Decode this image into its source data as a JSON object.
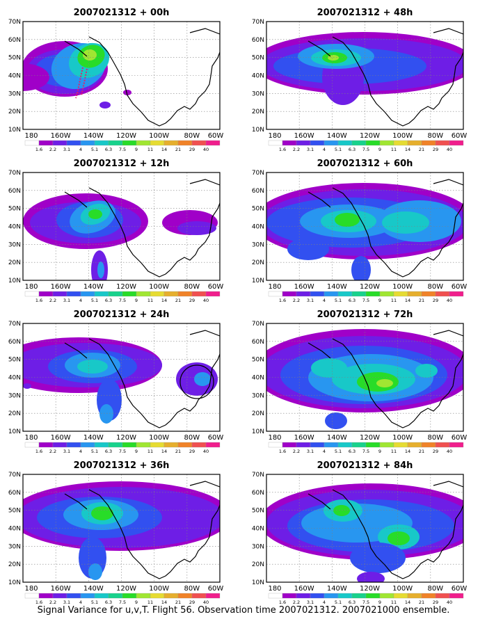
{
  "caption": "Signal Variance for u,v,T. Flight 56. Observation time 2007021312. 2007021000 ensemble.",
  "map": {
    "lat_labels": [
      "70N",
      "60N",
      "50N",
      "40N",
      "30N",
      "20N",
      "10N"
    ],
    "lon_labels": [
      "180",
      "160W",
      "140W",
      "120W",
      "100W",
      "80W",
      "60W"
    ]
  },
  "colorbar": {
    "levels": [
      "1.6",
      "2.2",
      "3.1",
      "4",
      "5.1",
      "6.3",
      "7.5",
      "9",
      "11",
      "14",
      "21",
      "29",
      "40"
    ],
    "colors": [
      "#ffffff",
      "#a000c8",
      "#6e1ee6",
      "#3250f0",
      "#2896f0",
      "#18c8c8",
      "#18d28c",
      "#28dc28",
      "#a0e632",
      "#e6dc32",
      "#e6af2d",
      "#f08228",
      "#f05050",
      "#f01e8c"
    ]
  },
  "panels": [
    {
      "title": "2007021312 + 00h"
    },
    {
      "title": "2007021312 + 48h"
    },
    {
      "title": "2007021312 + 12h"
    },
    {
      "title": "2007021312 + 60h"
    },
    {
      "title": "2007021312 + 24h"
    },
    {
      "title": "2007021312 + 72h"
    },
    {
      "title": "2007021312 + 36h"
    },
    {
      "title": "2007021312 + 84h"
    }
  ]
}
